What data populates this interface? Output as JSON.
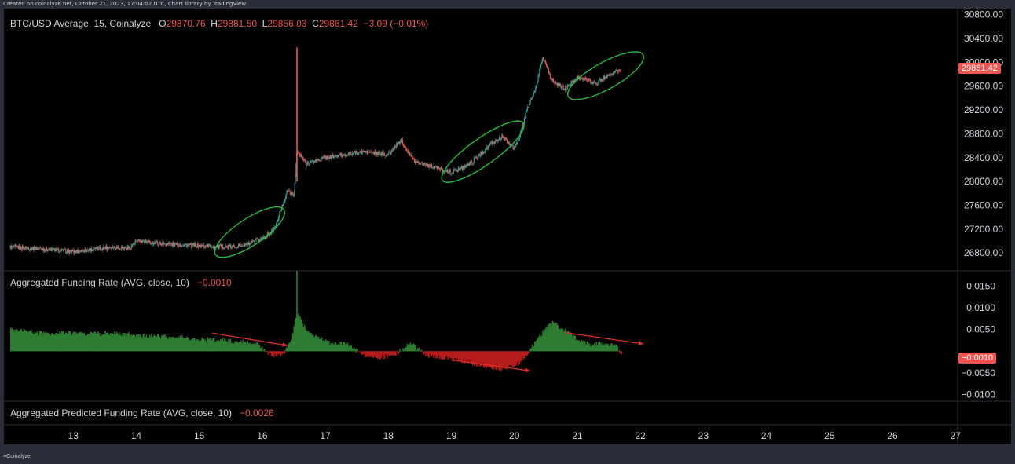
{
  "credit": "Created on coinalyze.net, October 21, 2023, 17:04:02 UTC, Chart library by TradingView",
  "footer_logo": "Coinalyze",
  "colors": {
    "up": "#26a69a",
    "down": "#ef5350",
    "bar_up": "#2e7d32",
    "bar_down": "#b71c1c",
    "ellipse": "#22c33a",
    "arrow": "#e0302a"
  },
  "chart_data": [
    {
      "type": "line",
      "title": "BTC/USD Average, 15, Coinalyze",
      "ohlc": {
        "o_label": "O",
        "o": "29870.76",
        "h_label": "H",
        "h": "29881.50",
        "l_label": "L",
        "l": "29856.03",
        "c_label": "C",
        "c": "29861.42",
        "change": "−3.09 (−0.01%)"
      },
      "last_price": "29861.42",
      "ylim": [
        26500,
        30900
      ],
      "y_ticks": [
        "30800.00",
        "30400.00",
        "30000.00",
        "29600.00",
        "29200.00",
        "28800.00",
        "28400.00",
        "28000.00",
        "27600.00",
        "27200.00",
        "26800.00"
      ],
      "y_tick_values": [
        30800,
        30400,
        30000,
        29600,
        29200,
        28800,
        28400,
        28000,
        27600,
        27200,
        26800
      ],
      "x": [
        12.0,
        12.5,
        13.0,
        13.3,
        13.6,
        13.9,
        14.0,
        14.5,
        15.0,
        15.5,
        15.8,
        16.0,
        16.15,
        16.22,
        16.4,
        16.5,
        16.55,
        16.7,
        17.0,
        17.3,
        17.6,
        18.0,
        18.2,
        18.4,
        18.7,
        19.0,
        19.3,
        19.6,
        19.8,
        20.0,
        20.1,
        20.2,
        20.35,
        20.45,
        20.6,
        20.8,
        21.0,
        21.3,
        21.5,
        21.7
      ],
      "values": [
        26900,
        26870,
        26820,
        26860,
        26900,
        26880,
        27000,
        26950,
        26920,
        26900,
        26950,
        27050,
        27150,
        27280,
        27850,
        27750,
        28500,
        28300,
        28400,
        28450,
        28500,
        28450,
        28700,
        28350,
        28250,
        28150,
        28300,
        28600,
        28750,
        28550,
        28800,
        29200,
        29600,
        30100,
        29700,
        29550,
        29750,
        29650,
        29800,
        29880
      ],
      "spike": {
        "x": 16.55,
        "high": 30250,
        "low": 28000
      },
      "highlight_ellipses": [
        {
          "x_from": 15.3,
          "x_to": 16.3,
          "y_from": 26800,
          "y_to": 27500
        },
        {
          "x_from": 18.9,
          "x_to": 20.1,
          "y_from": 28050,
          "y_to": 28950
        },
        {
          "x_from": 20.9,
          "x_to": 22.0,
          "y_from": 29450,
          "y_to": 30100
        }
      ]
    },
    {
      "type": "bar",
      "title": "Aggregated Funding Rate (AVG, close, 10)",
      "last_value_label": "−0.0010",
      "ylim": [
        -0.0115,
        0.0185
      ],
      "y_ticks": [
        "0.0150",
        "0.0100",
        "0.0050",
        "−0.0050",
        "−0.0100"
      ],
      "y_tick_values": [
        0.015,
        0.01,
        0.005,
        -0.005,
        -0.01
      ],
      "x": [
        12.0,
        12.3,
        12.6,
        12.9,
        13.2,
        13.5,
        13.8,
        14.1,
        14.4,
        14.7,
        15.0,
        15.3,
        15.6,
        15.9,
        16.1,
        16.3,
        16.45,
        16.55,
        16.7,
        16.9,
        17.1,
        17.3,
        17.6,
        17.9,
        18.1,
        18.35,
        18.6,
        18.9,
        19.2,
        19.5,
        19.8,
        20.05,
        20.2,
        20.45,
        20.6,
        20.8,
        21.0,
        21.2,
        21.4,
        21.6,
        21.7
      ],
      "values": [
        0.005,
        0.0045,
        0.004,
        0.0042,
        0.0038,
        0.0041,
        0.0039,
        0.0036,
        0.0034,
        0.0031,
        0.0028,
        0.0025,
        0.0022,
        0.0018,
        -0.0007,
        -0.0011,
        0.0021,
        0.009,
        0.0045,
        0.003,
        0.0015,
        0.0018,
        -0.0008,
        -0.0014,
        -0.0006,
        0.0017,
        -0.0008,
        -0.0015,
        -0.0025,
        -0.0032,
        -0.0042,
        -0.0028,
        -0.0005,
        0.0045,
        0.0065,
        0.0048,
        0.0025,
        0.0015,
        0.0018,
        0.0012,
        -0.001
      ],
      "spike": {
        "x": 16.55,
        "value": 0.0185
      },
      "trend_arrows": [
        {
          "x_from": 15.2,
          "y_from": 0.0042,
          "x_to": 16.4,
          "y_to": 0.0013
        },
        {
          "x_from": 19.0,
          "y_from": -0.002,
          "x_to": 20.25,
          "y_to": -0.0045
        },
        {
          "x_from": 20.8,
          "y_from": 0.0043,
          "x_to": 22.05,
          "y_to": 0.0017
        }
      ]
    },
    {
      "type": "line",
      "title": "Aggregated Predicted Funding Rate (AVG, close, 10)",
      "last_value_label": "−0.0026"
    }
  ],
  "x_axis": {
    "ticks": [
      "13",
      "14",
      "15",
      "16",
      "17",
      "18",
      "19",
      "20",
      "21",
      "22",
      "23",
      "24",
      "25",
      "26",
      "27"
    ],
    "tick_values": [
      13,
      14,
      15,
      16,
      17,
      18,
      19,
      20,
      21,
      22,
      23,
      24,
      25,
      26,
      27
    ],
    "range": [
      11.9,
      27.01
    ]
  }
}
